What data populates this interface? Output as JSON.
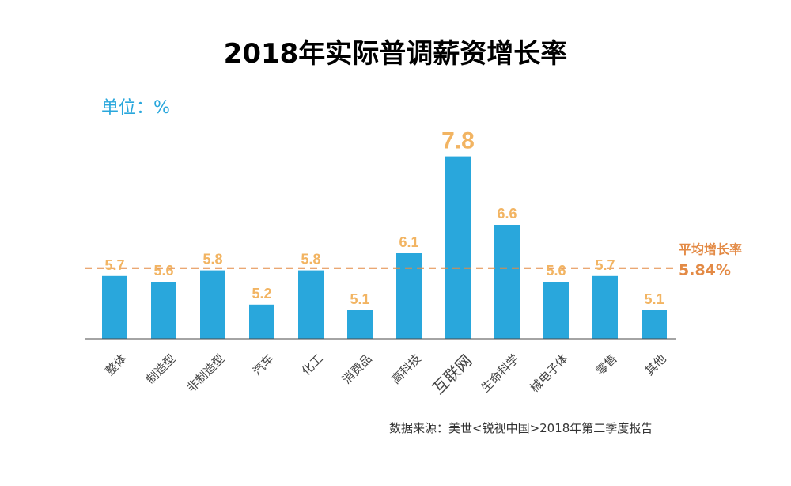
{
  "chart_data": {
    "type": "bar",
    "title": "2018年实际普调薪资增长率",
    "unit_label": "单位：%",
    "categories": [
      "整体",
      "制造型",
      "非制造型",
      "汽车",
      "化工",
      "消费品",
      "高科技",
      "互联网",
      "生命科学",
      "械电子体",
      "零售",
      "其他"
    ],
    "values": [
      5.7,
      5.6,
      5.8,
      5.2,
      5.8,
      5.1,
      6.1,
      7.8,
      6.6,
      5.6,
      5.7,
      5.1
    ],
    "value_labels": [
      "5.7",
      "5.6",
      "5.8",
      "5.2",
      "5.8",
      "5.1",
      "6.1",
      "7.8",
      "6.6",
      "5.6",
      "5.7",
      "5.1"
    ],
    "highlight_category": "互联网",
    "average": {
      "label": "平均增长率",
      "value": 5.84,
      "value_label": "5.84%"
    },
    "source": "数据来源：美世<锐视中国>2018年第二季度报告",
    "grid": false,
    "legend": "none",
    "colors": {
      "bar": "#29a7dc",
      "value_label": "#f2b462",
      "average_line": "#e38a45",
      "unit": "#29a7dc"
    }
  }
}
